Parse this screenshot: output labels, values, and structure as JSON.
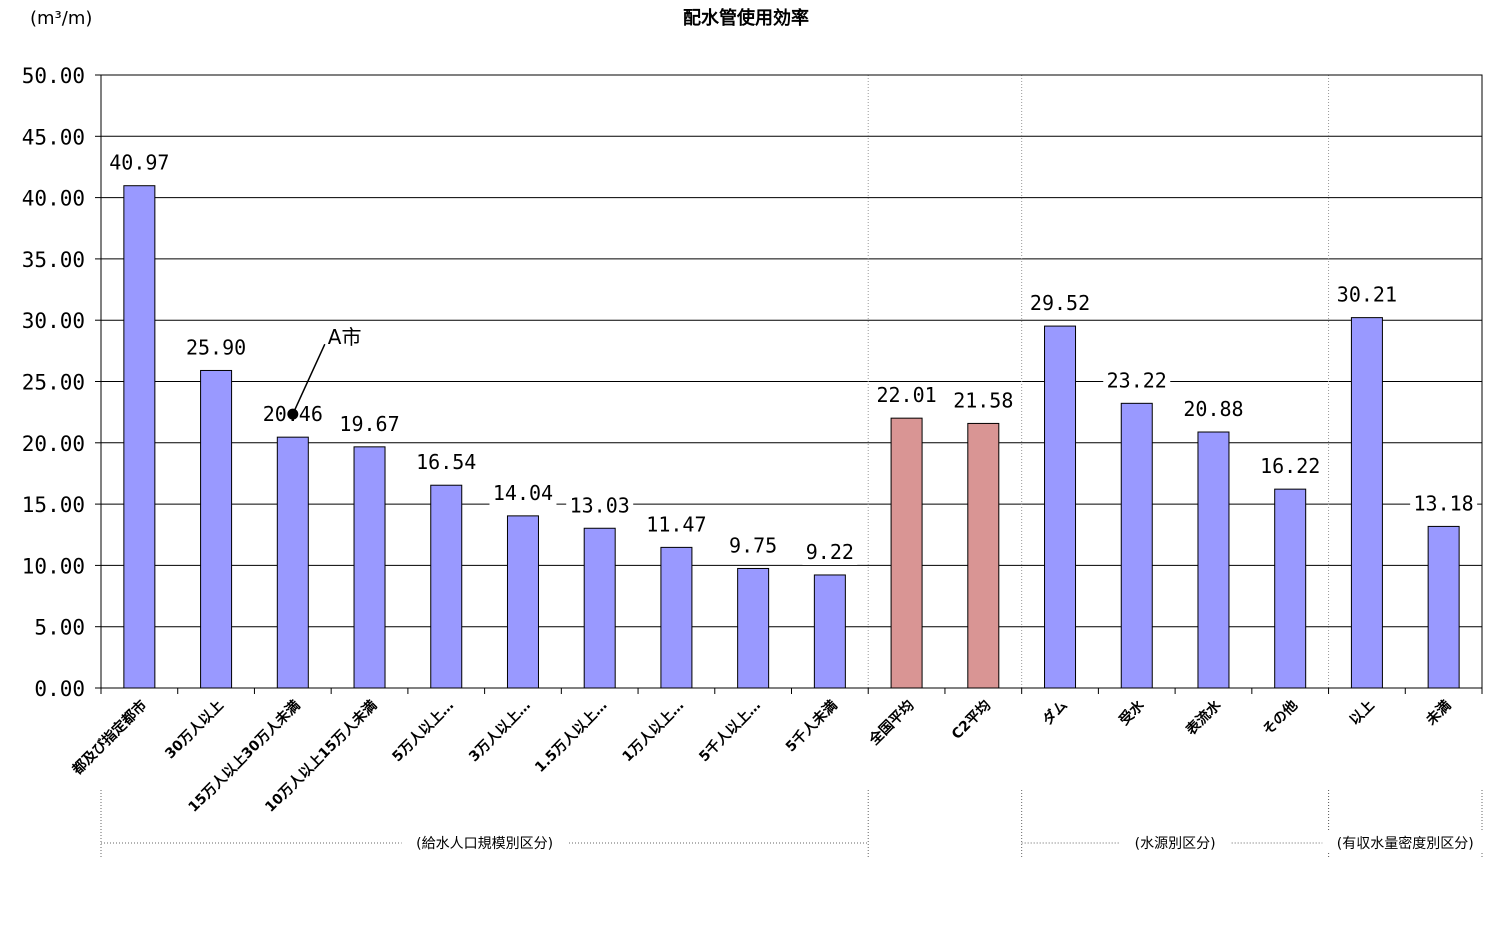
{
  "chart_data": {
    "type": "bar",
    "title": "配水管使用効率",
    "ylabel": "(m³/m)",
    "ylim": [
      0,
      50
    ],
    "yticks": [
      "0.00",
      "5.00",
      "10.00",
      "15.00",
      "20.00",
      "25.00",
      "30.00",
      "35.00",
      "40.00",
      "45.00",
      "50.00"
    ],
    "grid": true,
    "categories": [
      "都及び指定都市",
      "30万人以上",
      "15万人以上30万人未満",
      "10万人以上15万人未満",
      "5万人以上…",
      "3万人以上…",
      "1.5万人以上…",
      "1万人以上…",
      "5千人以上…",
      "5千人未満",
      "全国平均",
      "C2平均",
      "ダム",
      "受水",
      "表流水",
      "その他",
      "以上",
      "未満"
    ],
    "values": [
      40.97,
      25.9,
      20.46,
      19.67,
      16.54,
      14.04,
      13.03,
      11.47,
      9.75,
      9.22,
      22.01,
      21.58,
      29.52,
      23.22,
      20.88,
      16.22,
      30.21,
      13.18
    ],
    "data_labels": [
      "40.97",
      "25.90",
      "20.46",
      "19.67",
      "16.54",
      "14.04",
      "13.03",
      "11.47",
      "9.75",
      "9.22",
      "22.01",
      "21.58",
      "29.52",
      "23.22",
      "20.88",
      "16.22",
      "30.21",
      "13.18"
    ],
    "bar_colors": [
      "#9999ff",
      "#9999ff",
      "#9999ff",
      "#9999ff",
      "#9999ff",
      "#9999ff",
      "#9999ff",
      "#9999ff",
      "#9999ff",
      "#9999ff",
      "#d99594",
      "#d99594",
      "#9999ff",
      "#9999ff",
      "#9999ff",
      "#9999ff",
      "#9999ff",
      "#9999ff"
    ],
    "groups": [
      {
        "label": "(給水人口規模別区分)",
        "start": 0,
        "end": 9
      },
      {
        "label": "(水源別区分)",
        "start": 12,
        "end": 15
      },
      {
        "label": "(有収水量密度別区分)",
        "start": 16,
        "end": 17
      }
    ],
    "annotations": [
      {
        "text": "A市",
        "category_index": 2,
        "value": 22.5
      }
    ]
  }
}
